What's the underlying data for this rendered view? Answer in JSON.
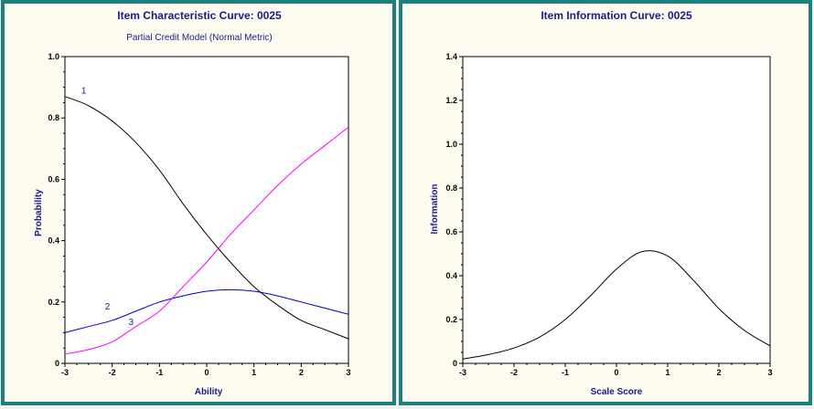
{
  "chart_data": [
    {
      "type": "line",
      "title": "Item Characteristic Curve: 0025",
      "subtitle": "Partial Credit Model (Normal Metric)",
      "xlabel": "Ability",
      "ylabel": "Probability",
      "xlim": [
        -3,
        3
      ],
      "ylim": [
        0,
        1
      ],
      "xticks": [
        "-3",
        "-2",
        "-1",
        "0",
        "1",
        "2",
        "3"
      ],
      "yticks": [
        "0",
        "0.2",
        "0.4",
        "0.6",
        "0.8",
        "1.0"
      ],
      "x": [
        -3,
        -2.5,
        -2,
        -1.5,
        -1,
        -0.5,
        0,
        0.5,
        1,
        1.5,
        2,
        2.5,
        3
      ],
      "series": [
        {
          "name": "1",
          "color": "#000000",
          "values": [
            0.87,
            0.84,
            0.79,
            0.72,
            0.63,
            0.52,
            0.42,
            0.33,
            0.25,
            0.19,
            0.14,
            0.11,
            0.08
          ]
        },
        {
          "name": "2",
          "color": "#0000cc",
          "values": [
            0.1,
            0.12,
            0.14,
            0.17,
            0.2,
            0.22,
            0.235,
            0.24,
            0.235,
            0.22,
            0.2,
            0.18,
            0.16
          ]
        },
        {
          "name": "3",
          "color": "#ff00ff",
          "values": [
            0.03,
            0.045,
            0.07,
            0.12,
            0.17,
            0.25,
            0.33,
            0.42,
            0.5,
            0.58,
            0.65,
            0.71,
            0.77
          ]
        }
      ],
      "grid": false
    },
    {
      "type": "line",
      "title": "Item Information Curve: 0025",
      "xlabel": "Scale Score",
      "ylabel": "Information",
      "xlim": [
        -3,
        3
      ],
      "ylim": [
        0,
        1.4
      ],
      "xticks": [
        "-3",
        "-2",
        "-1",
        "0",
        "1",
        "2",
        "3"
      ],
      "yticks": [
        "0",
        "0.2",
        "0.4",
        "0.6",
        "0.8",
        "1.0",
        "1.2",
        "1.4"
      ],
      "x": [
        -3,
        -2.5,
        -2,
        -1.5,
        -1,
        -0.5,
        0,
        0.5,
        1,
        1.5,
        2,
        2.5,
        3
      ],
      "series": [
        {
          "color": "#000000",
          "values": [
            0.02,
            0.04,
            0.07,
            0.12,
            0.2,
            0.31,
            0.43,
            0.51,
            0.49,
            0.38,
            0.25,
            0.15,
            0.08
          ]
        }
      ],
      "grid": false
    }
  ]
}
